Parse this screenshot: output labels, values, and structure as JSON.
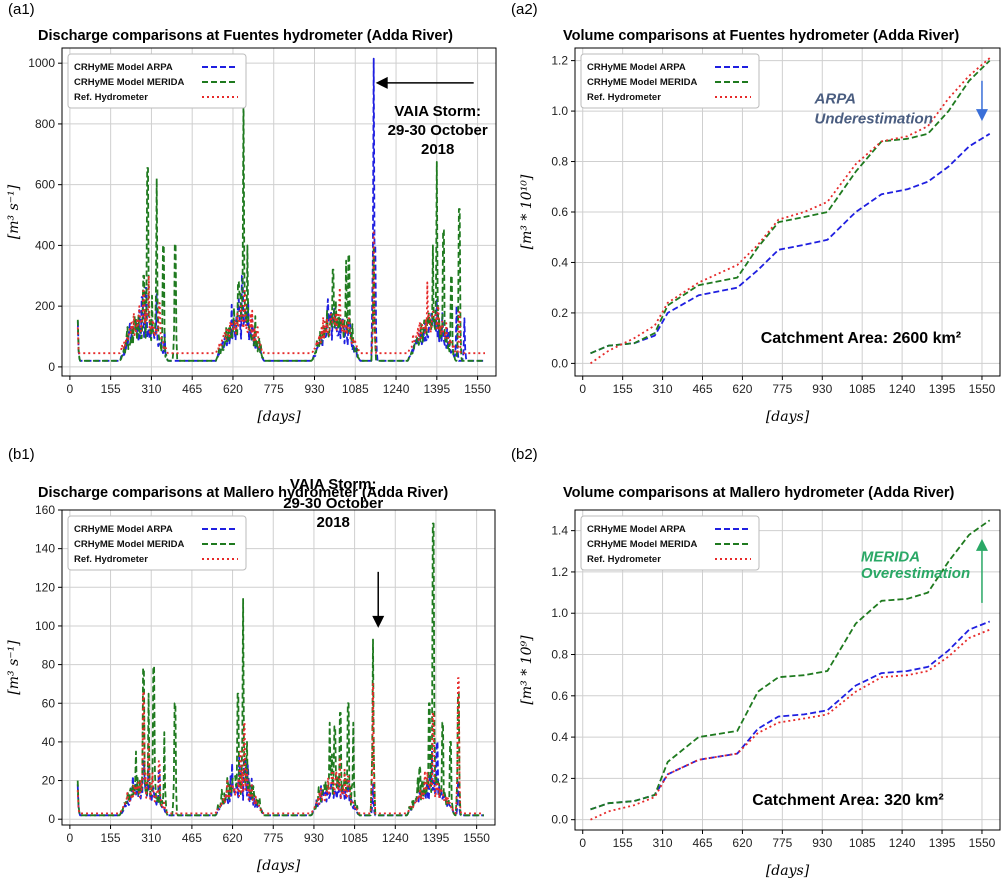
{
  "colors": {
    "arpa": "#1f1fe0",
    "merida": "#1f7a1f",
    "ref": "#e62a2a",
    "grid": "#cfcfcf",
    "note_blue": "#4a5d80",
    "note_green": "#2aa866"
  },
  "chart_data": [
    {
      "id": "a1",
      "type": "line",
      "panel_tag": "(a1)",
      "title": "Discharge comparisons at Fuentes hydrometer (Adda River)",
      "xlabel": "[days]",
      "ylabel": "[m³ s⁻¹]",
      "xlim": [
        -30,
        1620
      ],
      "ylim": [
        -30,
        1050
      ],
      "xticks": [
        "0",
        "155",
        "310",
        "465",
        "620",
        "775",
        "930",
        "1085",
        "1240",
        "1395",
        "1550"
      ],
      "yticks": [
        "0",
        "200",
        "400",
        "600",
        "800",
        "1000"
      ],
      "legend": [
        "CRHyME Model ARPA",
        "CRHyME Model MERIDA",
        "Ref. Hydrometer"
      ],
      "annotation": {
        "lines": [
          "VAIA Storm:",
          "29-30 October",
          "2018"
        ],
        "arrow": "left"
      },
      "series": [
        {
          "name": "CRHyME Model ARPA",
          "color": "#1f1fe0",
          "style": "dash",
          "base": 20,
          "peak": 150,
          "scale": 1.0,
          "spikes": [
            [
              30,
              150
            ],
            [
              275,
              230
            ],
            [
              290,
              260
            ],
            [
              330,
              240
            ],
            [
              360,
              120
            ],
            [
              640,
              200
            ],
            [
              655,
              300
            ],
            [
              670,
              180
            ],
            [
              1000,
              160
            ],
            [
              1060,
              150
            ],
            [
              1155,
              1015
            ],
            [
              1160,
              400
            ],
            [
              1370,
              120
            ],
            [
              1395,
              220
            ],
            [
              1470,
              200
            ],
            [
              1500,
              160
            ]
          ]
        },
        {
          "name": "CRHyME Model MERIDA",
          "color": "#1f7a1f",
          "style": "dash",
          "base": 20,
          "peak": 160,
          "scale": 1.0,
          "spikes": [
            [
              30,
              155
            ],
            [
              280,
              300
            ],
            [
              295,
              655
            ],
            [
              330,
              620
            ],
            [
              355,
              400
            ],
            [
              400,
              405
            ],
            [
              640,
              280
            ],
            [
              660,
              900
            ],
            [
              675,
              400
            ],
            [
              1000,
              320
            ],
            [
              1050,
              350
            ],
            [
              1060,
              370
            ],
            [
              1155,
              400
            ],
            [
              1380,
              400
            ],
            [
              1395,
              675
            ],
            [
              1420,
              450
            ],
            [
              1450,
              300
            ],
            [
              1480,
              520
            ]
          ]
        },
        {
          "name": "Ref. Hydrometer",
          "color": "#e62a2a",
          "style": "dot",
          "base": 45,
          "peak": 140,
          "scale": 1.0,
          "spikes": [
            [
              30,
              130
            ],
            [
              280,
              250
            ],
            [
              300,
              300
            ],
            [
              340,
              210
            ],
            [
              650,
              200
            ],
            [
              665,
              250
            ],
            [
              1000,
              150
            ],
            [
              1060,
              160
            ],
            [
              1155,
              450
            ],
            [
              1380,
              140
            ],
            [
              1400,
              200
            ],
            [
              1480,
              180
            ]
          ]
        }
      ]
    },
    {
      "id": "a2",
      "type": "line",
      "panel_tag": "(a2)",
      "title": "Volume comparisons at Fuentes hydrometer (Adda River)",
      "xlabel": "[days]",
      "ylabel": "[m³ * 10¹⁰]",
      "xlim": [
        -30,
        1620
      ],
      "ylim": [
        -0.05,
        1.25
      ],
      "xticks": [
        "0",
        "155",
        "310",
        "465",
        "620",
        "775",
        "930",
        "1085",
        "1240",
        "1395",
        "1550"
      ],
      "yticks": [
        "0.0",
        "0.2",
        "0.4",
        "0.6",
        "0.8",
        "1.0",
        "1.2"
      ],
      "legend": [
        "CRHyME Model ARPA",
        "CRHyME Model MERIDA",
        "Ref. Hydrometer"
      ],
      "note": [
        "ARPA",
        "Underestimation"
      ],
      "catchment": "Catchment Area: 2600 km²",
      "arrow": "down",
      "series": [
        {
          "name": "CRHyME Model ARPA",
          "color": "#1f1fe0",
          "style": "dash",
          "x": [
            30,
            100,
            200,
            280,
            330,
            450,
            600,
            680,
            760,
            860,
            950,
            1060,
            1160,
            1260,
            1340,
            1420,
            1500,
            1580
          ],
          "y": [
            0.04,
            0.07,
            0.08,
            0.11,
            0.2,
            0.27,
            0.3,
            0.37,
            0.45,
            0.47,
            0.49,
            0.6,
            0.67,
            0.69,
            0.72,
            0.78,
            0.86,
            0.91
          ]
        },
        {
          "name": "CRHyME Model MERIDA",
          "color": "#1f7a1f",
          "style": "dash",
          "x": [
            30,
            100,
            200,
            280,
            330,
            450,
            600,
            680,
            760,
            860,
            950,
            1060,
            1160,
            1260,
            1340,
            1420,
            1500,
            1580
          ],
          "y": [
            0.04,
            0.07,
            0.08,
            0.12,
            0.23,
            0.31,
            0.34,
            0.46,
            0.56,
            0.58,
            0.6,
            0.76,
            0.88,
            0.89,
            0.91,
            1.0,
            1.12,
            1.2
          ]
        },
        {
          "name": "Ref. Hydrometer",
          "color": "#e62a2a",
          "style": "dot",
          "x": [
            30,
            100,
            200,
            280,
            330,
            450,
            600,
            680,
            760,
            860,
            950,
            1060,
            1160,
            1260,
            1340,
            1420,
            1500,
            1580
          ],
          "y": [
            0.0,
            0.05,
            0.1,
            0.15,
            0.24,
            0.32,
            0.39,
            0.47,
            0.57,
            0.6,
            0.64,
            0.79,
            0.88,
            0.9,
            0.94,
            1.05,
            1.14,
            1.21
          ]
        }
      ]
    },
    {
      "id": "b1",
      "type": "line",
      "panel_tag": "(b1)",
      "title": "Discharge comparisons at Mallero hydrometer (Adda River)",
      "xlabel": "[days]",
      "ylabel": "[m³ s⁻¹]",
      "xlim": [
        -30,
        1620
      ],
      "ylim": [
        -3,
        160
      ],
      "xticks": [
        "0",
        "155",
        "310",
        "465",
        "620",
        "775",
        "930",
        "1085",
        "1240",
        "1395",
        "1550"
      ],
      "yticks": [
        "0",
        "20",
        "40",
        "60",
        "80",
        "100",
        "120",
        "140",
        "160"
      ],
      "legend": [
        "CRHyME Model ARPA",
        "CRHyME Model MERIDA",
        "Ref. Hydrometer"
      ],
      "annotation": {
        "lines": [
          "VAIA Storm:",
          "29-30 October",
          "2018"
        ],
        "arrow": "down"
      },
      "series": [
        {
          "name": "CRHyME Model ARPA",
          "color": "#1f1fe0",
          "style": "dash",
          "base": 2,
          "peak": 18,
          "scale": 1.0,
          "spikes": [
            [
              30,
              18
            ],
            [
              280,
              30
            ],
            [
              300,
              28
            ],
            [
              340,
              25
            ],
            [
              650,
              25
            ],
            [
              665,
              32
            ],
            [
              1000,
              20
            ],
            [
              1060,
              20
            ],
            [
              1155,
              18
            ],
            [
              1380,
              35
            ],
            [
              1400,
              40
            ],
            [
              1480,
              20
            ]
          ]
        },
        {
          "name": "CRHyME Model MERIDA",
          "color": "#1f7a1f",
          "style": "dash",
          "base": 2,
          "peak": 22,
          "scale": 1.0,
          "spikes": [
            [
              30,
              20
            ],
            [
              280,
              78
            ],
            [
              300,
              65
            ],
            [
              320,
              79
            ],
            [
              360,
              45
            ],
            [
              400,
              60
            ],
            [
              640,
              65
            ],
            [
              660,
              114
            ],
            [
              675,
              40
            ],
            [
              990,
              50
            ],
            [
              1010,
              48
            ],
            [
              1030,
              55
            ],
            [
              1060,
              60
            ],
            [
              1080,
              50
            ],
            [
              1155,
              93
            ],
            [
              1370,
              60
            ],
            [
              1385,
              153
            ],
            [
              1420,
              50
            ],
            [
              1450,
              40
            ],
            [
              1480,
              65
            ]
          ]
        },
        {
          "name": "Ref. Hydrometer",
          "color": "#e62a2a",
          "style": "dot",
          "base": 3,
          "peak": 18,
          "scale": 1.0,
          "spikes": [
            [
              30,
              15
            ],
            [
              280,
              66
            ],
            [
              300,
              40
            ],
            [
              340,
              30
            ],
            [
              650,
              35
            ],
            [
              665,
              50
            ],
            [
              1000,
              25
            ],
            [
              1060,
              22
            ],
            [
              1155,
              70
            ],
            [
              1385,
              55
            ],
            [
              1480,
              73
            ]
          ]
        }
      ]
    },
    {
      "id": "b2",
      "type": "line",
      "panel_tag": "(b2)",
      "title": "Volume comparisons at Mallero hydrometer (Adda River)",
      "xlabel": "[days]",
      "ylabel": "[m³ * 10⁹]",
      "xlim": [
        -30,
        1620
      ],
      "ylim": [
        -0.05,
        1.5
      ],
      "xticks": [
        "0",
        "155",
        "310",
        "465",
        "620",
        "775",
        "930",
        "1085",
        "1240",
        "1395",
        "1550"
      ],
      "yticks": [
        "0.0",
        "0.2",
        "0.4",
        "0.6",
        "0.8",
        "1.0",
        "1.2",
        "1.4"
      ],
      "legend": [
        "CRHyME Model ARPA",
        "CRHyME Model MERIDA",
        "Ref. Hydrometer"
      ],
      "note": [
        "MERIDA",
        "Overestimation"
      ],
      "catchment": "Catchment Area: 320 km²",
      "arrow": "up",
      "series": [
        {
          "name": "CRHyME Model ARPA",
          "color": "#1f1fe0",
          "style": "dash",
          "x": [
            30,
            100,
            200,
            280,
            330,
            450,
            600,
            680,
            760,
            860,
            950,
            1060,
            1160,
            1260,
            1340,
            1420,
            1500,
            1580
          ],
          "y": [
            0.05,
            0.08,
            0.09,
            0.12,
            0.22,
            0.29,
            0.32,
            0.44,
            0.5,
            0.51,
            0.53,
            0.65,
            0.71,
            0.72,
            0.74,
            0.82,
            0.92,
            0.96
          ]
        },
        {
          "name": "CRHyME Model MERIDA",
          "color": "#1f7a1f",
          "style": "dash",
          "x": [
            30,
            100,
            200,
            280,
            330,
            450,
            600,
            680,
            760,
            860,
            950,
            1060,
            1160,
            1260,
            1340,
            1420,
            1500,
            1580
          ],
          "y": [
            0.05,
            0.08,
            0.09,
            0.12,
            0.28,
            0.4,
            0.43,
            0.62,
            0.69,
            0.7,
            0.72,
            0.95,
            1.06,
            1.07,
            1.1,
            1.25,
            1.38,
            1.45
          ]
        },
        {
          "name": "Ref. Hydrometer",
          "color": "#e62a2a",
          "style": "dot",
          "x": [
            30,
            100,
            200,
            280,
            330,
            450,
            600,
            680,
            760,
            860,
            950,
            1060,
            1160,
            1260,
            1340,
            1420,
            1500,
            1580
          ],
          "y": [
            0.0,
            0.04,
            0.07,
            0.11,
            0.22,
            0.29,
            0.32,
            0.42,
            0.47,
            0.49,
            0.51,
            0.62,
            0.69,
            0.7,
            0.72,
            0.79,
            0.88,
            0.92
          ]
        }
      ]
    }
  ]
}
